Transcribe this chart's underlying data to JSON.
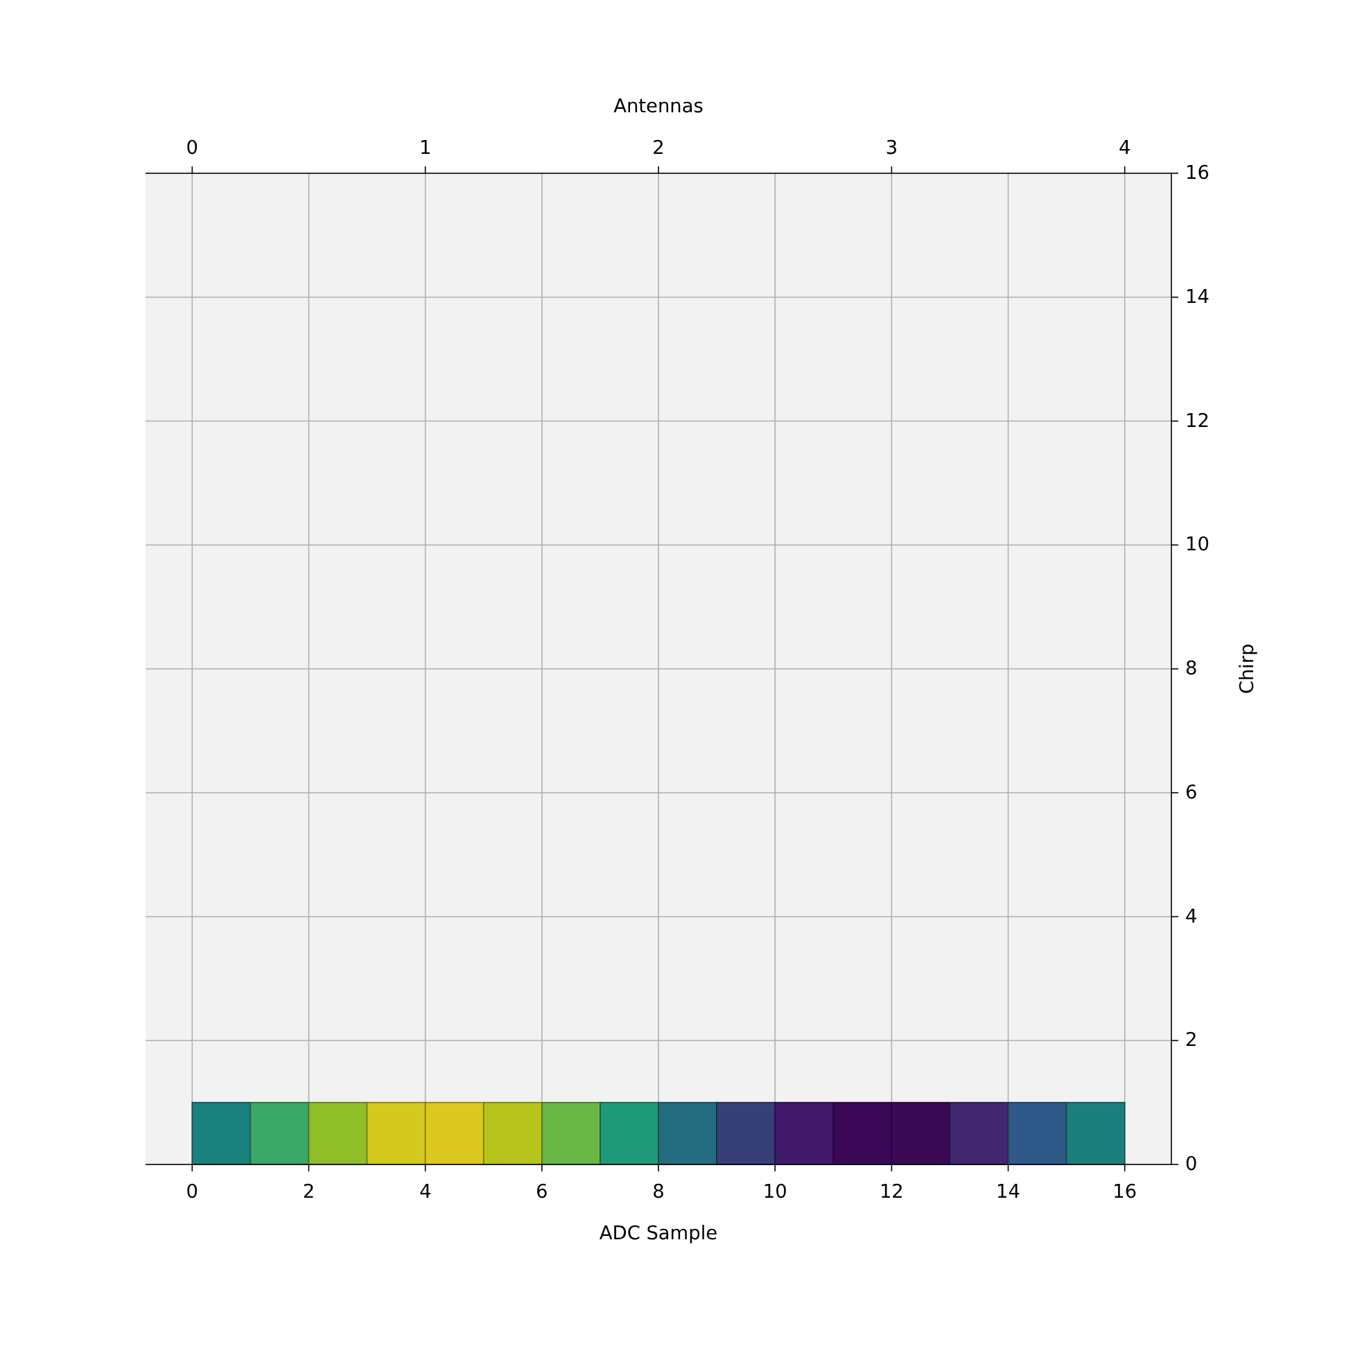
{
  "chart_data": {
    "type": "bar",
    "xlabel": "ADC Sample",
    "ylabel": "Chirp",
    "x2label": "Antennas",
    "x": [
      0.5,
      1.5,
      2.5,
      3.5,
      4.5,
      5.5,
      6.5,
      7.5,
      8.5,
      9.5,
      10.5,
      11.5,
      12.5,
      13.5,
      14.5,
      15.5
    ],
    "values": [
      1,
      1,
      1,
      1,
      1,
      1,
      1,
      1,
      1,
      1,
      1,
      1,
      1,
      1,
      1,
      1
    ],
    "colors": [
      "#1b817e",
      "#3aa866",
      "#8fbe29",
      "#d4ca1d",
      "#dcc91f",
      "#b7c41b",
      "#69b746",
      "#1f9a79",
      "#246d80",
      "#373f78",
      "#40196b",
      "#3b0858",
      "#3b0a56",
      "#40276f",
      "#2e5988",
      "#1b807d"
    ],
    "xlim": [
      -0.8,
      16.8
    ],
    "xticks": [
      0,
      2,
      4,
      6,
      8,
      10,
      12,
      14,
      16
    ],
    "ylim": [
      0,
      16
    ],
    "yticks": [
      0,
      2,
      4,
      6,
      8,
      10,
      12,
      14,
      16
    ],
    "x2lim": [
      -0.2,
      4.2
    ],
    "x2ticks": [
      0,
      1,
      2,
      3,
      4
    ],
    "grid": true
  }
}
